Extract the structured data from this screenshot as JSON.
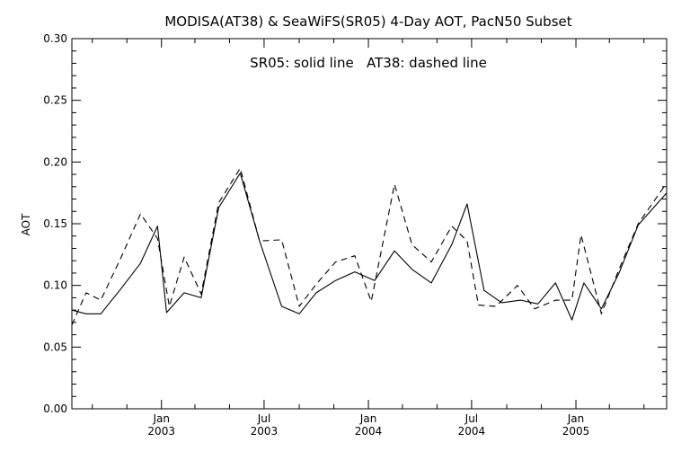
{
  "chart_data": {
    "type": "line",
    "title": "MODISA(AT38) & SeaWiFS(SR05) 4-Day AOT, PacN50 Subset",
    "annotation": "SR05: solid line   AT38: dashed line",
    "ylabel": "AOT",
    "xlabel": "",
    "ylim": [
      0.0,
      0.3
    ],
    "yticks": [
      "0.00",
      "0.05",
      "0.10",
      "0.15",
      "0.20",
      "0.25",
      "0.30"
    ],
    "xlim": [
      "2002-07-27",
      "2005-06-10"
    ],
    "xtick_labels": [
      {
        "date": "2003-01-01",
        "month": "Jan",
        "year": "2003"
      },
      {
        "date": "2003-07-01",
        "month": "Jul",
        "year": "2003"
      },
      {
        "date": "2004-01-01",
        "month": "Jan",
        "year": "2004"
      },
      {
        "date": "2004-07-01",
        "month": "Jul",
        "year": "2004"
      },
      {
        "date": "2005-01-01",
        "month": "Jan",
        "year": "2005"
      }
    ],
    "xminor_dates": [
      "2002-09-01",
      "2002-11-01",
      "2003-03-01",
      "2003-05-01",
      "2003-09-01",
      "2003-11-01",
      "2004-03-01",
      "2004-05-01",
      "2004-09-01",
      "2004-11-01",
      "2005-03-01",
      "2005-05-01"
    ],
    "grid": false,
    "series": [
      {
        "name": "SR05",
        "style": "solid",
        "color": "#000000",
        "points": [
          [
            "2002-07-27",
            0.08
          ],
          [
            "2002-08-21",
            0.077
          ],
          [
            "2002-09-16",
            0.077
          ],
          [
            "2002-10-21",
            0.097
          ],
          [
            "2002-11-25",
            0.118
          ],
          [
            "2002-12-25",
            0.148
          ],
          [
            "2003-01-10",
            0.078
          ],
          [
            "2003-02-10",
            0.094
          ],
          [
            "2003-03-12",
            0.09
          ],
          [
            "2003-04-12",
            0.163
          ],
          [
            "2003-05-20",
            0.191
          ],
          [
            "2003-06-23",
            0.136
          ],
          [
            "2003-08-01",
            0.083
          ],
          [
            "2003-09-01",
            0.077
          ],
          [
            "2003-10-01",
            0.094
          ],
          [
            "2003-11-04",
            0.104
          ],
          [
            "2003-12-08",
            0.111
          ],
          [
            "2004-01-12",
            0.104
          ],
          [
            "2004-02-16",
            0.128
          ],
          [
            "2004-03-18",
            0.113
          ],
          [
            "2004-04-21",
            0.102
          ],
          [
            "2004-05-27",
            0.133
          ],
          [
            "2004-06-23",
            0.166
          ],
          [
            "2004-07-23",
            0.096
          ],
          [
            "2004-08-23",
            0.086
          ],
          [
            "2004-09-26",
            0.088
          ],
          [
            "2004-10-26",
            0.085
          ],
          [
            "2004-11-26",
            0.102
          ],
          [
            "2004-12-25",
            0.072
          ],
          [
            "2005-01-15",
            0.102
          ],
          [
            "2005-02-15",
            0.081
          ],
          [
            "2005-03-18",
            0.11
          ],
          [
            "2005-04-21",
            0.149
          ],
          [
            "2005-06-10",
            0.175
          ]
        ]
      },
      {
        "name": "AT38",
        "style": "dashed",
        "color": "#000000",
        "points": [
          [
            "2002-07-27",
            0.068
          ],
          [
            "2002-08-21",
            0.094
          ],
          [
            "2002-09-16",
            0.088
          ],
          [
            "2002-10-21",
            0.122
          ],
          [
            "2002-11-25",
            0.158
          ],
          [
            "2002-12-25",
            0.138
          ],
          [
            "2003-01-15",
            0.083
          ],
          [
            "2003-02-10",
            0.123
          ],
          [
            "2003-03-12",
            0.093
          ],
          [
            "2003-04-12",
            0.167
          ],
          [
            "2003-05-20",
            0.195
          ],
          [
            "2003-06-23",
            0.136
          ],
          [
            "2003-08-01",
            0.137
          ],
          [
            "2003-09-01",
            0.083
          ],
          [
            "2003-10-01",
            0.101
          ],
          [
            "2003-11-04",
            0.119
          ],
          [
            "2003-12-08",
            0.124
          ],
          [
            "2004-01-06",
            0.087
          ],
          [
            "2004-02-16",
            0.182
          ],
          [
            "2004-03-18",
            0.133
          ],
          [
            "2004-04-21",
            0.119
          ],
          [
            "2004-05-27",
            0.148
          ],
          [
            "2004-06-23",
            0.136
          ],
          [
            "2004-07-13",
            0.084
          ],
          [
            "2004-08-13",
            0.083
          ],
          [
            "2004-09-20",
            0.1
          ],
          [
            "2004-10-20",
            0.081
          ],
          [
            "2004-11-26",
            0.088
          ],
          [
            "2004-12-25",
            0.088
          ],
          [
            "2005-01-10",
            0.141
          ],
          [
            "2005-02-15",
            0.077
          ],
          [
            "2005-03-18",
            0.113
          ],
          [
            "2005-04-21",
            0.15
          ],
          [
            "2005-06-10",
            0.183
          ]
        ]
      }
    ]
  }
}
